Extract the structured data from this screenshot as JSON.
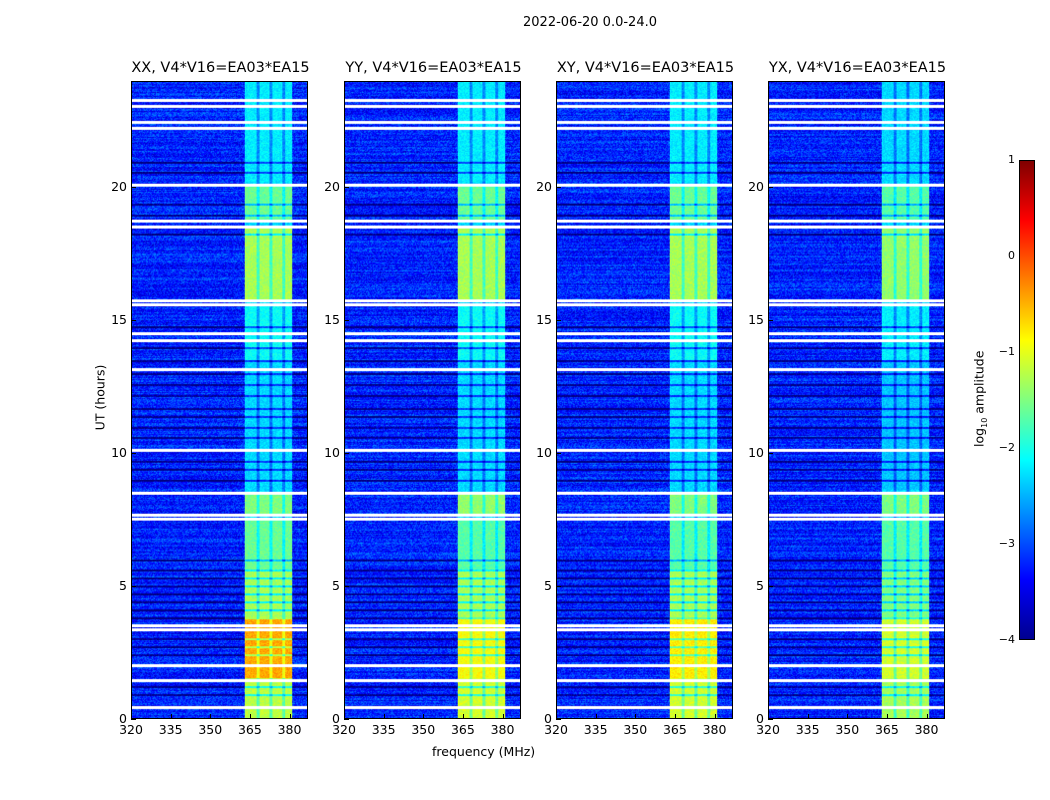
{
  "chart_data": {
    "type": "heatmap",
    "title": "2022-06-20 0.0-24.0",
    "xlabel": "frequency (MHz)",
    "ylabel": "UT (hours)",
    "xlim": [
      320,
      387
    ],
    "ylim": [
      0,
      24
    ],
    "xticks": [
      "320",
      "335",
      "350",
      "365",
      "380"
    ],
    "xtick_values": [
      320,
      335,
      350,
      365,
      380
    ],
    "yticks": [
      "0",
      "5",
      "10",
      "15",
      "20"
    ],
    "ytick_values": [
      0,
      5,
      10,
      15,
      20
    ],
    "colorbar": {
      "label_main": "log",
      "label_sub": "10",
      "label_rest": " amplitude",
      "range": [
        -4,
        1
      ],
      "ticks": [
        "1",
        "0",
        "−1",
        "−2",
        "−3",
        "−4"
      ],
      "tick_values": [
        1,
        0,
        -1,
        -2,
        -3,
        -4
      ],
      "colormap": "jet"
    },
    "background_level": -3.2,
    "band": {
      "freq_range": [
        363,
        381.5
      ],
      "gap_channels": [
        368.3,
        373.3,
        378.2
      ]
    },
    "flagged_rows_ut": [
      0.45,
      1.45,
      2.05,
      3.4,
      3.55,
      7.55,
      7.7,
      8.55,
      10.15,
      13.2,
      14.3,
      14.55,
      15.65,
      15.8,
      18.6,
      18.8,
      20.15,
      22.3,
      22.55,
      23.15,
      23.35
    ],
    "dark_rows_ut": [
      0.9,
      1.2,
      2.4,
      2.7,
      3.0,
      3.8,
      4.1,
      4.4,
      4.7,
      5.0,
      5.3,
      5.6,
      6.0,
      9.0,
      9.4,
      9.7,
      10.6,
      11.0,
      11.4,
      11.7,
      12.2,
      12.6,
      13.0,
      13.5,
      14.0,
      14.8,
      18.3,
      19.0,
      19.4,
      20.6,
      21.0
    ],
    "panels": [
      {
        "title": "XX, V4*V16=EA03*EA15",
        "band_levels": [
          [
            0,
            1.5,
            -1.2
          ],
          [
            1.5,
            3.8,
            -0.45
          ],
          [
            3.8,
            5.6,
            -1.3
          ],
          [
            5.6,
            7.5,
            -1.6
          ],
          [
            7.7,
            8.5,
            -1.5
          ],
          [
            8.6,
            13.5,
            -2.3
          ],
          [
            13.5,
            15.6,
            -2.1
          ],
          [
            15.8,
            18.5,
            -1.3
          ],
          [
            18.8,
            20.1,
            -1.6
          ],
          [
            20.2,
            24,
            -2.2
          ]
        ]
      },
      {
        "title": "YY, V4*V16=EA03*EA15",
        "band_levels": [
          [
            0,
            1.5,
            -1.1
          ],
          [
            1.5,
            3.8,
            -0.9
          ],
          [
            3.8,
            5.6,
            -1.3
          ],
          [
            5.6,
            7.5,
            -1.7
          ],
          [
            7.7,
            8.5,
            -1.4
          ],
          [
            8.6,
            13.5,
            -2.3
          ],
          [
            13.5,
            15.6,
            -2.1
          ],
          [
            15.8,
            18.5,
            -1.3
          ],
          [
            18.8,
            20.1,
            -1.6
          ],
          [
            20.2,
            24,
            -2.2
          ]
        ]
      },
      {
        "title": "XY, V4*V16=EA03*EA15",
        "band_levels": [
          [
            0,
            1.5,
            -1.1
          ],
          [
            1.5,
            3.8,
            -0.8
          ],
          [
            3.8,
            5.6,
            -1.3
          ],
          [
            5.6,
            7.5,
            -1.7
          ],
          [
            7.7,
            8.5,
            -1.5
          ],
          [
            8.6,
            13.5,
            -2.3
          ],
          [
            13.5,
            15.6,
            -2.1
          ],
          [
            15.8,
            18.5,
            -1.3
          ],
          [
            18.8,
            20.1,
            -1.6
          ],
          [
            20.2,
            24,
            -2.2
          ]
        ]
      },
      {
        "title": "YX, V4*V16=EA03*EA15",
        "band_levels": [
          [
            0,
            1.5,
            -1.3
          ],
          [
            1.5,
            3.8,
            -1.1
          ],
          [
            3.8,
            5.6,
            -1.5
          ],
          [
            5.6,
            7.5,
            -1.7
          ],
          [
            7.7,
            8.5,
            -1.5
          ],
          [
            8.6,
            13.5,
            -2.4
          ],
          [
            13.5,
            15.6,
            -2.2
          ],
          [
            15.8,
            18.5,
            -1.4
          ],
          [
            18.8,
            20.1,
            -1.7
          ],
          [
            20.2,
            24,
            -2.3
          ]
        ]
      }
    ]
  }
}
